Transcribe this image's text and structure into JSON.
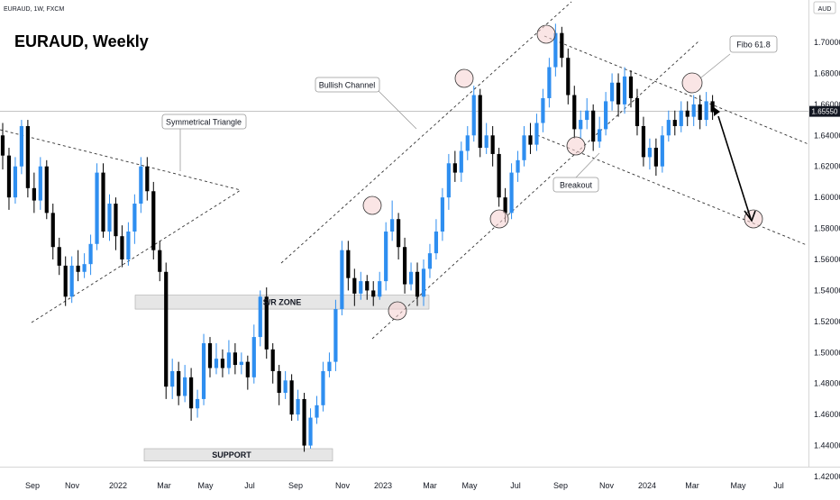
{
  "header": {
    "symbol_line": "EURAUD, 1W, FXCM",
    "title": "EURAUD, Weekly"
  },
  "price_scale": {
    "currency": "AUD",
    "current_price_label": "1.65550"
  },
  "annotations": {
    "symmetrical_triangle": "Symmetrical Triangle",
    "bullish_channel": "Bullish Channel",
    "sr_zone": "S/R ZONE",
    "support": "SUPPORT",
    "breakout": "Breakout",
    "fibo": "Fibo 61.8"
  },
  "colors": {
    "bull": "#2e8ef0",
    "bear": "#000000",
    "highlight_fill": "#f5d0d0",
    "zone_fill": "#e0e0e0"
  },
  "chart_data": {
    "type": "candlestick",
    "title": "EURAUD, Weekly",
    "x_ticks": [
      "Sep",
      "Nov",
      "2022",
      "Mar",
      "May",
      "Jul",
      "Sep",
      "Nov",
      "2023",
      "Mar",
      "May",
      "Jul",
      "Sep",
      "Nov",
      "2024",
      "Mar",
      "May",
      "Jul"
    ],
    "y_ticks": [
      "1.70000",
      "1.68000",
      "1.66000",
      "1.64000",
      "1.62000",
      "1.60000",
      "1.58000",
      "1.56000",
      "1.54000",
      "1.52000",
      "1.50000",
      "1.48000",
      "1.46000",
      "1.44000",
      "1.42000"
    ],
    "ylim": [
      1.418,
      1.728
    ],
    "current_price": 1.6555,
    "sr_zone": [
      1.528,
      1.537
    ],
    "support_zone": [
      1.43,
      1.438
    ],
    "candles": [
      [
        1.64,
        1.627,
        1.648,
        1.618
      ],
      [
        1.627,
        1.6,
        1.632,
        1.592
      ],
      [
        1.6,
        1.62,
        1.626,
        1.596
      ],
      [
        1.62,
        1.646,
        1.65,
        1.615
      ],
      [
        1.646,
        1.606,
        1.65,
        1.6
      ],
      [
        1.606,
        1.598,
        1.616,
        1.59
      ],
      [
        1.598,
        1.62,
        1.626,
        1.592
      ],
      [
        1.62,
        1.59,
        1.624,
        1.586
      ],
      [
        1.59,
        1.568,
        1.596,
        1.56
      ],
      [
        1.568,
        1.556,
        1.574,
        1.55
      ],
      [
        1.556,
        1.536,
        1.562,
        1.53
      ],
      [
        1.536,
        1.556,
        1.562,
        1.532
      ],
      [
        1.556,
        1.552,
        1.566,
        1.546
      ],
      [
        1.552,
        1.557,
        1.564,
        1.548
      ],
      [
        1.557,
        1.57,
        1.576,
        1.55
      ],
      [
        1.57,
        1.616,
        1.622,
        1.566
      ],
      [
        1.616,
        1.578,
        1.622,
        1.574
      ],
      [
        1.578,
        1.596,
        1.602,
        1.572
      ],
      [
        1.596,
        1.575,
        1.6,
        1.566
      ],
      [
        1.575,
        1.56,
        1.582,
        1.555
      ],
      [
        1.56,
        1.578,
        1.584,
        1.556
      ],
      [
        1.578,
        1.596,
        1.602,
        1.57
      ],
      [
        1.596,
        1.62,
        1.626,
        1.59
      ],
      [
        1.62,
        1.604,
        1.626,
        1.598
      ],
      [
        1.604,
        1.566,
        1.61,
        1.56
      ],
      [
        1.566,
        1.552,
        1.572,
        1.546
      ],
      [
        1.552,
        1.478,
        1.558,
        1.47
      ],
      [
        1.478,
        1.488,
        1.496,
        1.47
      ],
      [
        1.488,
        1.472,
        1.494,
        1.466
      ],
      [
        1.472,
        1.484,
        1.492,
        1.468
      ],
      [
        1.484,
        1.464,
        1.49,
        1.456
      ],
      [
        1.464,
        1.47,
        1.476,
        1.458
      ],
      [
        1.47,
        1.506,
        1.512,
        1.466
      ],
      [
        1.506,
        1.49,
        1.51,
        1.484
      ],
      [
        1.49,
        1.496,
        1.506,
        1.486
      ],
      [
        1.496,
        1.49,
        1.502,
        1.484
      ],
      [
        1.49,
        1.5,
        1.508,
        1.486
      ],
      [
        1.5,
        1.492,
        1.506,
        1.486
      ],
      [
        1.492,
        1.494,
        1.5,
        1.486
      ],
      [
        1.494,
        1.484,
        1.498,
        1.476
      ],
      [
        1.484,
        1.51,
        1.518,
        1.48
      ],
      [
        1.51,
        1.536,
        1.54,
        1.504
      ],
      [
        1.536,
        1.502,
        1.542,
        1.496
      ],
      [
        1.502,
        1.488,
        1.506,
        1.48
      ],
      [
        1.488,
        1.474,
        1.492,
        1.466
      ],
      [
        1.474,
        1.482,
        1.488,
        1.47
      ],
      [
        1.482,
        1.46,
        1.486,
        1.456
      ],
      [
        1.46,
        1.47,
        1.476,
        1.456
      ],
      [
        1.47,
        1.44,
        1.474,
        1.436
      ],
      [
        1.44,
        1.458,
        1.464,
        1.438
      ],
      [
        1.458,
        1.466,
        1.472,
        1.454
      ],
      [
        1.466,
        1.488,
        1.494,
        1.462
      ],
      [
        1.488,
        1.494,
        1.5,
        1.484
      ],
      [
        1.494,
        1.528,
        1.534,
        1.488
      ],
      [
        1.528,
        1.566,
        1.572,
        1.524
      ],
      [
        1.566,
        1.548,
        1.572,
        1.54
      ],
      [
        1.548,
        1.538,
        1.554,
        1.53
      ],
      [
        1.538,
        1.546,
        1.552,
        1.534
      ],
      [
        1.546,
        1.54,
        1.55,
        1.534
      ],
      [
        1.54,
        1.536,
        1.546,
        1.53
      ],
      [
        1.536,
        1.546,
        1.552,
        1.534
      ],
      [
        1.546,
        1.578,
        1.584,
        1.54
      ],
      [
        1.578,
        1.586,
        1.598,
        1.572
      ],
      [
        1.586,
        1.568,
        1.59,
        1.56
      ],
      [
        1.568,
        1.544,
        1.574,
        1.538
      ],
      [
        1.544,
        1.552,
        1.558,
        1.54
      ],
      [
        1.552,
        1.536,
        1.558,
        1.53
      ],
      [
        1.536,
        1.554,
        1.56,
        1.53
      ],
      [
        1.554,
        1.564,
        1.57,
        1.548
      ],
      [
        1.564,
        1.578,
        1.586,
        1.56
      ],
      [
        1.578,
        1.6,
        1.606,
        1.572
      ],
      [
        1.6,
        1.622,
        1.628,
        1.592
      ],
      [
        1.622,
        1.616,
        1.63,
        1.61
      ],
      [
        1.616,
        1.63,
        1.636,
        1.61
      ],
      [
        1.63,
        1.64,
        1.646,
        1.624
      ],
      [
        1.64,
        1.666,
        1.672,
        1.636
      ],
      [
        1.666,
        1.632,
        1.67,
        1.626
      ],
      [
        1.632,
        1.64,
        1.648,
        1.628
      ],
      [
        1.64,
        1.628,
        1.646,
        1.62
      ],
      [
        1.628,
        1.6,
        1.632,
        1.594
      ],
      [
        1.6,
        1.59,
        1.606,
        1.584
      ],
      [
        1.59,
        1.616,
        1.622,
        1.586
      ],
      [
        1.616,
        1.624,
        1.63,
        1.61
      ],
      [
        1.624,
        1.64,
        1.646,
        1.62
      ],
      [
        1.64,
        1.634,
        1.648,
        1.628
      ],
      [
        1.634,
        1.648,
        1.654,
        1.63
      ],
      [
        1.648,
        1.664,
        1.67,
        1.642
      ],
      [
        1.664,
        1.684,
        1.69,
        1.658
      ],
      [
        1.684,
        1.706,
        1.712,
        1.678
      ],
      [
        1.706,
        1.69,
        1.71,
        1.684
      ],
      [
        1.69,
        1.666,
        1.696,
        1.66
      ],
      [
        1.666,
        1.644,
        1.672,
        1.638
      ],
      [
        1.644,
        1.65,
        1.656,
        1.638
      ],
      [
        1.65,
        1.656,
        1.664,
        1.644
      ],
      [
        1.656,
        1.636,
        1.66,
        1.63
      ],
      [
        1.636,
        1.644,
        1.652,
        1.632
      ],
      [
        1.644,
        1.662,
        1.668,
        1.64
      ],
      [
        1.662,
        1.674,
        1.68,
        1.656
      ],
      [
        1.674,
        1.66,
        1.68,
        1.652
      ],
      [
        1.66,
        1.678,
        1.684,
        1.654
      ],
      [
        1.678,
        1.664,
        1.682,
        1.658
      ],
      [
        1.664,
        1.646,
        1.67,
        1.64
      ],
      [
        1.646,
        1.626,
        1.652,
        1.62
      ],
      [
        1.626,
        1.632,
        1.638,
        1.618
      ],
      [
        1.632,
        1.62,
        1.638,
        1.614
      ],
      [
        1.62,
        1.64,
        1.646,
        1.616
      ],
      [
        1.64,
        1.65,
        1.656,
        1.636
      ],
      [
        1.65,
        1.646,
        1.656,
        1.64
      ],
      [
        1.646,
        1.656,
        1.662,
        1.642
      ],
      [
        1.656,
        1.652,
        1.662,
        1.646
      ],
      [
        1.652,
        1.66,
        1.666,
        1.646
      ],
      [
        1.66,
        1.65,
        1.666,
        1.644
      ],
      [
        1.65,
        1.662,
        1.668,
        1.646
      ],
      [
        1.662,
        1.655,
        1.666,
        1.65
      ]
    ]
  }
}
